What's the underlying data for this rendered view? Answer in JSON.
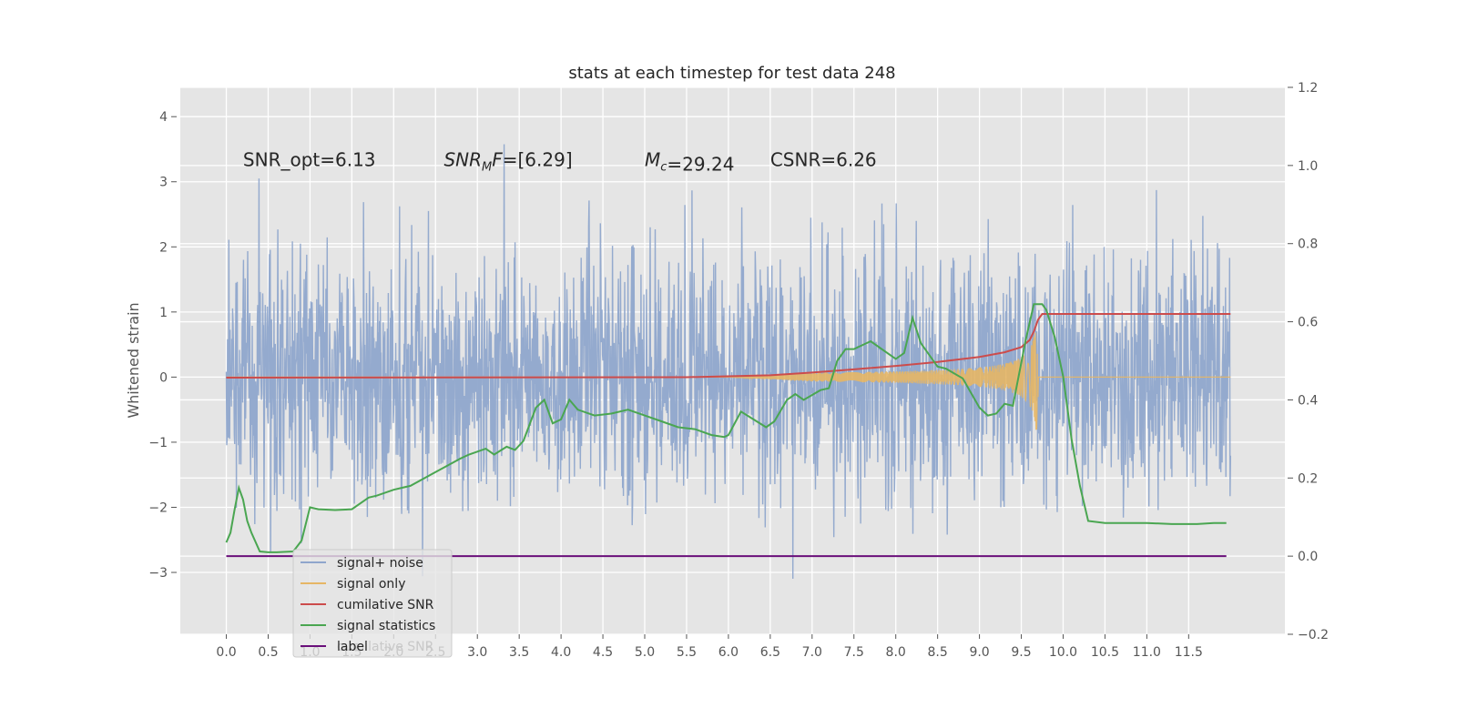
{
  "chart_data": {
    "type": "line",
    "title": "stats at each timestep for test data 248",
    "ylabel": "Whitened strain",
    "xlabel": "",
    "xlim": [
      -0.55,
      12.65
    ],
    "ylim": [
      -3.95,
      4.45
    ],
    "ylim_right": [
      -0.2,
      1.2
    ],
    "x_ticks": [
      0.0,
      0.5,
      1.0,
      1.5,
      2.0,
      2.5,
      3.0,
      3.5,
      4.0,
      4.5,
      5.0,
      5.5,
      6.0,
      6.5,
      7.0,
      7.5,
      8.0,
      8.5,
      9.0,
      9.5,
      10.0,
      10.5,
      11.0,
      11.5
    ],
    "x_tick_labels": [
      "0.0",
      "0.5",
      "1.0",
      "1.5",
      "2.0",
      "2.5",
      "3.0",
      "3.5",
      "4.0",
      "4.5",
      "5.0",
      "5.5",
      "6.0",
      "6.5",
      "7.0",
      "7.5",
      "8.0",
      "8.5",
      "9.0",
      "9.5",
      "10.0",
      "10.5",
      "11.0",
      "11.5"
    ],
    "y_ticks": [
      -3,
      -2,
      -1,
      0,
      1,
      2,
      3,
      4
    ],
    "y_tick_labels": [
      "−3",
      "−2",
      "−1",
      "0",
      "1",
      "2",
      "3",
      "4"
    ],
    "y_ticks_right": [
      -0.2,
      0.0,
      0.2,
      0.4,
      0.6,
      0.8,
      1.0,
      1.2
    ],
    "y_tick_labels_right": [
      "−0.2",
      "0.0",
      "0.2",
      "0.4",
      "0.6",
      "0.8",
      "1.0",
      "1.2"
    ],
    "grid": true,
    "legend_position": "lower-left",
    "annotations": [
      {
        "text": "SNR_opt=6.13",
        "x": 0.2,
        "y": 3.35
      },
      {
        "text": "SNR_MF=[6.29]",
        "x": 2.6,
        "y": 3.35
      },
      {
        "text": "M_c=29.24",
        "x": 5.0,
        "y": 3.35
      },
      {
        "text": "CSNR=6.26",
        "x": 6.5,
        "y": 3.35
      }
    ],
    "series": [
      {
        "name": "signal+ noise",
        "color": "#8fa6cc",
        "axis": "left",
        "x_range": [
          0.0,
          12.0
        ],
        "noise_std": 1.0,
        "note_values": "dense whitened strain samples roughly within -3.5..4.1"
      },
      {
        "name": "signal only",
        "color": "#e6b665",
        "axis": "left",
        "chirp": {
          "start": 6.0,
          "merger": 9.7,
          "peak_amplitude": 1.3,
          "end": 12.0
        }
      },
      {
        "name": "cumilative SNR",
        "color": "#cc4c4c",
        "axis": "right",
        "x": [
          0.0,
          5.5,
          6.5,
          7.0,
          7.5,
          8.0,
          8.5,
          9.0,
          9.3,
          9.5,
          9.6,
          9.65,
          9.7,
          9.75,
          12.0
        ],
        "y": [
          0.457,
          0.458,
          0.463,
          0.47,
          0.478,
          0.487,
          0.497,
          0.51,
          0.522,
          0.535,
          0.553,
          0.575,
          0.605,
          0.62,
          0.62
        ]
      },
      {
        "name": "signal statistics",
        "color": "#4aa651",
        "axis": "right",
        "x": [
          0.0,
          0.05,
          0.1,
          0.15,
          0.2,
          0.25,
          0.3,
          0.4,
          0.5,
          0.6,
          0.8,
          0.9,
          1.0,
          1.1,
          1.3,
          1.5,
          1.7,
          1.8,
          2.0,
          2.1,
          2.2,
          2.5,
          2.8,
          2.9,
          3.1,
          3.2,
          3.35,
          3.45,
          3.55,
          3.7,
          3.8,
          3.9,
          4.0,
          4.1,
          4.2,
          4.4,
          4.6,
          4.8,
          5.0,
          5.2,
          5.4,
          5.6,
          5.8,
          5.95,
          6.0,
          6.15,
          6.3,
          6.45,
          6.55,
          6.7,
          6.8,
          6.9,
          7.1,
          7.2,
          7.3,
          7.4,
          7.5,
          7.7,
          7.8,
          8.0,
          8.1,
          8.2,
          8.3,
          8.5,
          8.6,
          8.8,
          9.0,
          9.1,
          9.2,
          9.3,
          9.4,
          9.55,
          9.65,
          9.75,
          9.8,
          9.9,
          10.0,
          10.1,
          10.2,
          10.3,
          10.5,
          10.8,
          11.0,
          11.3,
          11.6,
          11.8,
          11.95
        ],
        "y": [
          0.035,
          0.06,
          0.12,
          0.175,
          0.145,
          0.09,
          0.06,
          0.012,
          0.01,
          0.01,
          0.012,
          0.04,
          0.125,
          0.12,
          0.118,
          0.12,
          0.15,
          0.155,
          0.17,
          0.175,
          0.18,
          0.215,
          0.25,
          0.26,
          0.275,
          0.26,
          0.28,
          0.272,
          0.295,
          0.38,
          0.4,
          0.34,
          0.35,
          0.4,
          0.375,
          0.36,
          0.365,
          0.375,
          0.36,
          0.345,
          0.33,
          0.325,
          0.31,
          0.305,
          0.31,
          0.37,
          0.35,
          0.33,
          0.345,
          0.4,
          0.415,
          0.4,
          0.425,
          0.43,
          0.5,
          0.53,
          0.53,
          0.55,
          0.535,
          0.505,
          0.52,
          0.61,
          0.545,
          0.485,
          0.48,
          0.455,
          0.38,
          0.36,
          0.365,
          0.39,
          0.385,
          0.55,
          0.645,
          0.645,
          0.63,
          0.56,
          0.46,
          0.3,
          0.18,
          0.09,
          0.085,
          0.085,
          0.085,
          0.082,
          0.082,
          0.085,
          0.085
        ]
      },
      {
        "name": "label",
        "color": "#6a0f7a",
        "axis": "right",
        "x": [
          0.0,
          11.95
        ],
        "y": [
          0.0,
          0.0
        ]
      }
    ],
    "legend_overlap_text": "cumilative SNR"
  }
}
